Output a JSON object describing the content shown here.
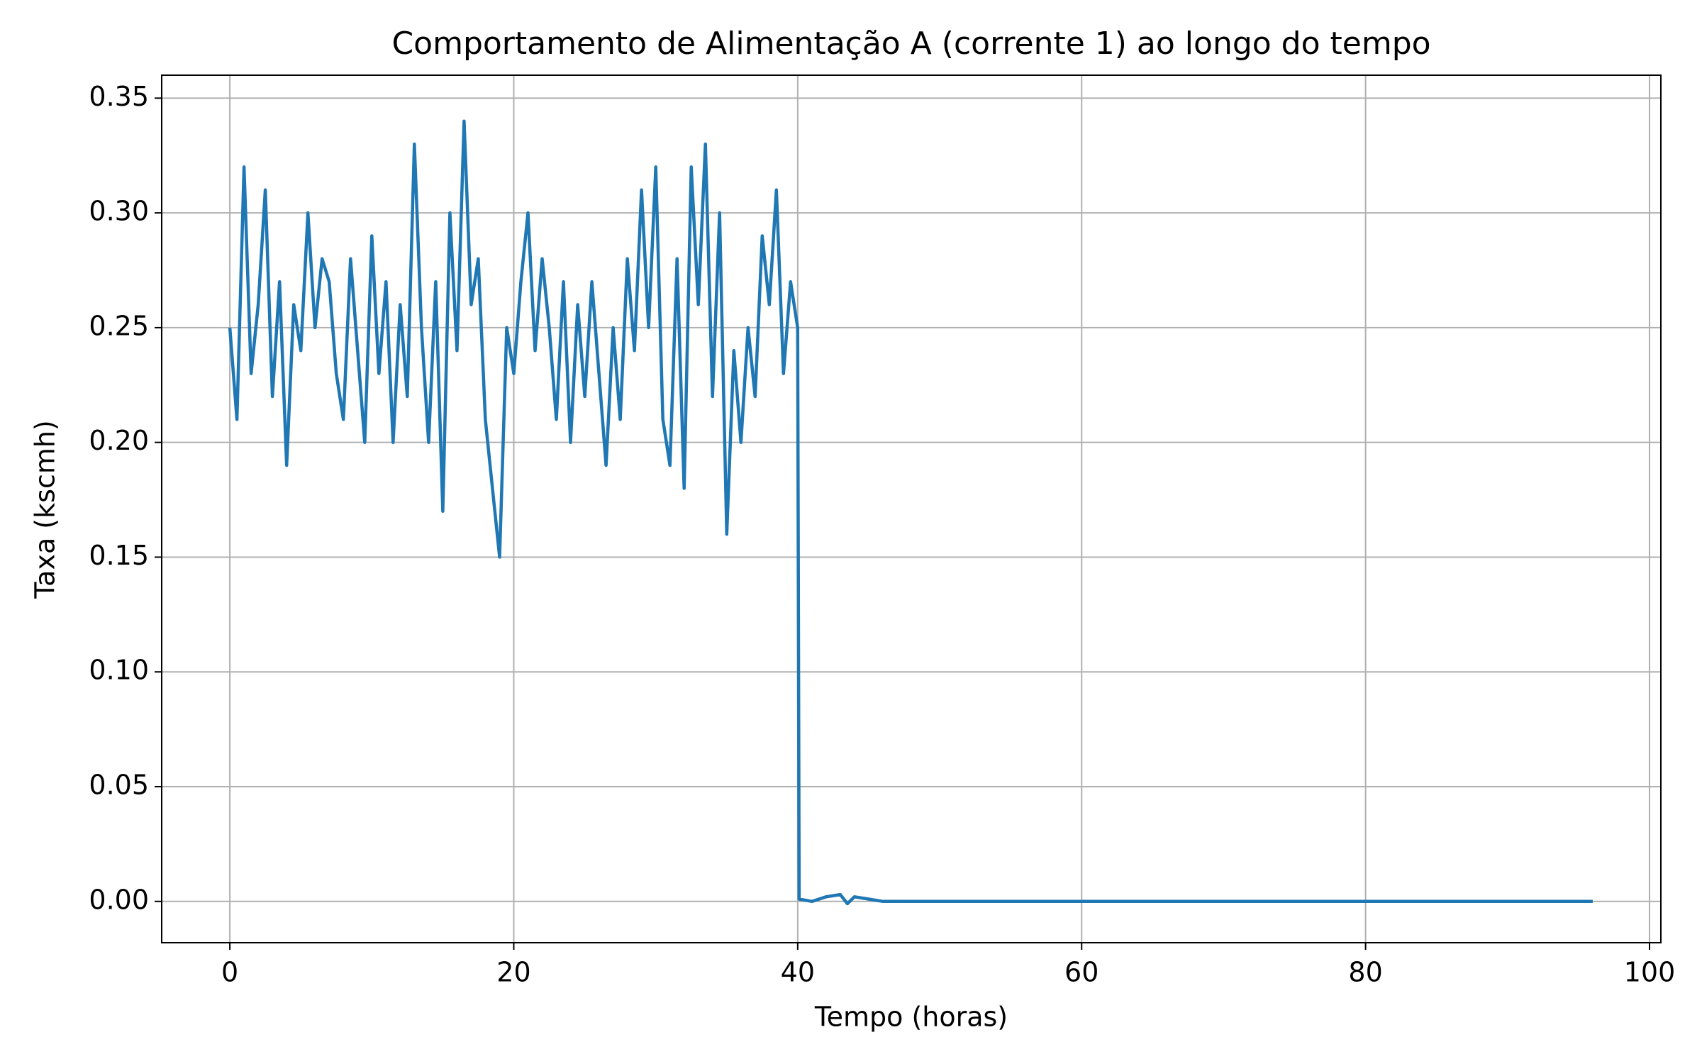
{
  "chart_data": {
    "type": "line",
    "title": "Comportamento de Alimentação A (corrente 1) ao longo do tempo",
    "x_label": "Tempo (horas)",
    "y_label": "Taxa (kscmh)",
    "xlim": [
      -4.8,
      100.8
    ],
    "ylim": [
      -0.018,
      0.36
    ],
    "xticks": [
      0,
      20,
      40,
      60,
      80,
      100
    ],
    "yticks": [
      {
        "value": 0,
        "label": "0.00"
      },
      {
        "value": 0.05,
        "label": "0.05"
      },
      {
        "value": 0.1,
        "label": "0.10"
      },
      {
        "value": 0.15,
        "label": "0.15"
      },
      {
        "value": 0.2,
        "label": "0.20"
      },
      {
        "value": 0.25,
        "label": "0.25"
      },
      {
        "value": 0.3,
        "label": "0.30"
      },
      {
        "value": 0.35,
        "label": "0.35"
      }
    ],
    "grid": true,
    "x": [
      0,
      0.5,
      1,
      1.5,
      2,
      2.5,
      3,
      3.5,
      4,
      4.5,
      5,
      5.5,
      6,
      6.5,
      7,
      7.5,
      8,
      8.5,
      9,
      9.5,
      10,
      10.5,
      11,
      11.5,
      12,
      12.5,
      13,
      13.5,
      14,
      14.5,
      15,
      15.5,
      16,
      16.5,
      17,
      17.5,
      18,
      18.5,
      19,
      19.5,
      20,
      20.5,
      21,
      21.5,
      22,
      22.5,
      23,
      23.5,
      24,
      24.5,
      25,
      25.5,
      26,
      26.5,
      27,
      27.5,
      28,
      28.5,
      29,
      29.5,
      30,
      30.5,
      31,
      31.5,
      32,
      32.5,
      33,
      33.5,
      34,
      34.5,
      35,
      35.5,
      36,
      36.5,
      37,
      37.5,
      38,
      38.5,
      39,
      39.5,
      40,
      40.1,
      41,
      42,
      43,
      43.5,
      44,
      45,
      46,
      96
    ],
    "series": [
      {
        "name": "Alimentação A",
        "color": "#1f77b4",
        "values": [
          0.25,
          0.21,
          0.32,
          0.23,
          0.26,
          0.31,
          0.22,
          0.27,
          0.19,
          0.26,
          0.24,
          0.3,
          0.25,
          0.28,
          0.27,
          0.23,
          0.21,
          0.28,
          0.24,
          0.2,
          0.29,
          0.23,
          0.27,
          0.2,
          0.26,
          0.22,
          0.33,
          0.25,
          0.2,
          0.27,
          0.17,
          0.3,
          0.24,
          0.34,
          0.26,
          0.28,
          0.21,
          0.18,
          0.15,
          0.25,
          0.23,
          0.27,
          0.3,
          0.24,
          0.28,
          0.25,
          0.21,
          0.27,
          0.2,
          0.26,
          0.22,
          0.27,
          0.23,
          0.19,
          0.25,
          0.21,
          0.28,
          0.24,
          0.31,
          0.25,
          0.32,
          0.21,
          0.19,
          0.28,
          0.18,
          0.32,
          0.26,
          0.33,
          0.22,
          0.3,
          0.16,
          0.24,
          0.2,
          0.25,
          0.22,
          0.29,
          0.26,
          0.31,
          0.23,
          0.27,
          0.25,
          0.001,
          0,
          0.002,
          0.003,
          -0.001,
          0.002,
          0.001,
          0,
          0
        ]
      }
    ]
  }
}
